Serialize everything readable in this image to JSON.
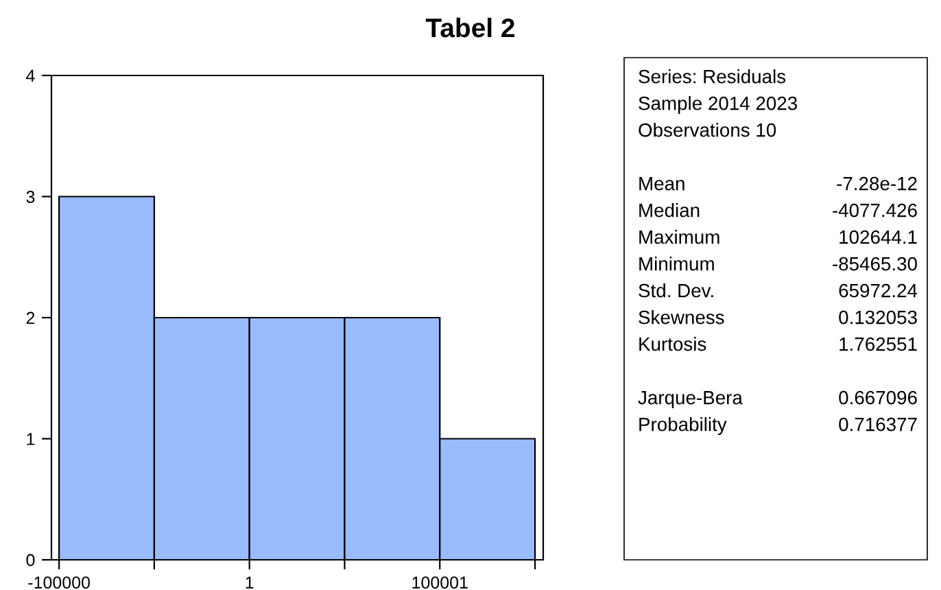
{
  "chart_data": {
    "type": "histogram",
    "title": "Tabel 2",
    "bins": [
      -100000,
      -49999.5,
      1,
      50000.5,
      100001,
      150001.5
    ],
    "values": [
      3,
      2,
      2,
      2,
      1
    ],
    "color": "#99bbff",
    "xlim": [
      -104000,
      154300
    ],
    "xticks": [
      -100000,
      {
        "value": -49999.5,
        "label": null
      },
      1,
      {
        "value": 50000.5,
        "label": null
      },
      100001,
      {
        "value": 150001.5,
        "label": null
      }
    ],
    "ylim": [
      0,
      4
    ],
    "yticks": [
      0,
      1,
      2,
      3,
      4
    ],
    "grid": false,
    "annotations": [
      "Series: Residuals",
      "Sample 2014 2023",
      "Observations 10",
      "Mean",
      "-7.28e-12",
      "Median",
      "-4077.426",
      "Maximum",
      "102644.1",
      "Minimum",
      "-85465.30",
      "Std. Dev.",
      "65972.24",
      "Skewness",
      "0.132053",
      "Kurtosis",
      "1.762551",
      "Jarque-Bera",
      "0.667096",
      "Probability",
      "0.716377"
    ]
  }
}
